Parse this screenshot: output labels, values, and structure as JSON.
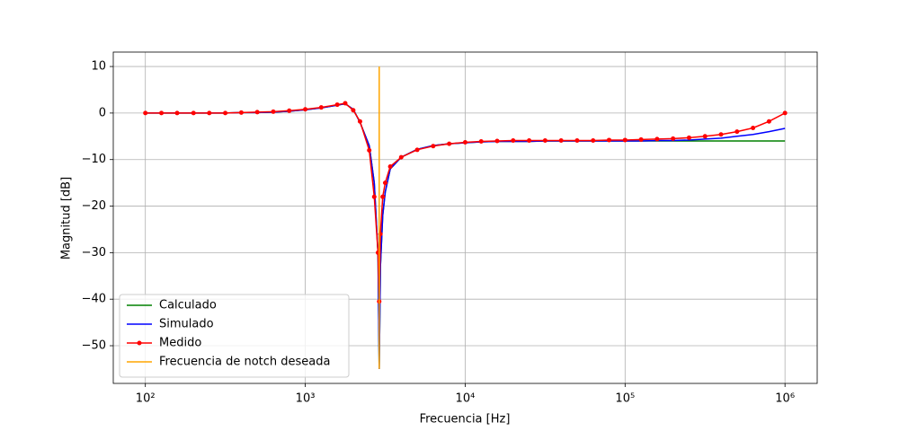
{
  "chart_data": {
    "type": "line",
    "xscale": "log",
    "grid": true,
    "legend": "lower left",
    "xlabel": "Frecuencia [Hz]",
    "ylabel": "Magnitud [dB]",
    "xlim": [
      63,
      1590000
    ],
    "ylim": [
      -58.1,
      13.1
    ],
    "xticks": [
      {
        "value": 100,
        "label": "10²"
      },
      {
        "value": 1000,
        "label": "10³"
      },
      {
        "value": 10000,
        "label": "10⁴"
      },
      {
        "value": 100000,
        "label": "10⁵"
      },
      {
        "value": 1000000,
        "label": "10⁶"
      }
    ],
    "yticks": [
      {
        "value": -50,
        "label": "−50"
      },
      {
        "value": -40,
        "label": "−40"
      },
      {
        "value": -30,
        "label": "−30"
      },
      {
        "value": -20,
        "label": "−20"
      },
      {
        "value": -10,
        "label": "−10"
      },
      0,
      10
    ],
    "x": [
      100,
      126,
      158,
      200,
      251,
      316,
      398,
      501,
      631,
      794,
      1000,
      1259,
      1585,
      1778,
      1995,
      2200,
      2512,
      2700,
      2850,
      2900,
      2950,
      3050,
      3162,
      3400,
      3981,
      5012,
      6310,
      7943,
      10000,
      12590,
      15850,
      19950,
      25120,
      31620,
      39810,
      50120,
      63100,
      79430,
      100000,
      125900,
      158500,
      199500,
      251200,
      316200,
      398100,
      501200,
      631000,
      794300,
      1000000
    ],
    "series": [
      {
        "name": "Calculado",
        "color": "#008000",
        "values": [
          0,
          0,
          0,
          0,
          0,
          0,
          0.1,
          0.1,
          0.2,
          0.4,
          0.7,
          1.1,
          1.7,
          2.0,
          0.8,
          -2,
          -7,
          -15,
          -30,
          -55,
          -33,
          -22,
          -17,
          -12,
          -9.5,
          -7.8,
          -7,
          -6.6,
          -6.4,
          -6.2,
          -6.1,
          -6.1,
          -6.1,
          -6,
          -6,
          -6,
          -6,
          -6,
          -6,
          -6,
          -6,
          -6,
          -6,
          -6,
          -6,
          -6,
          -6,
          -6,
          -6
        ]
      },
      {
        "name": "Simulado",
        "color": "#0000ff",
        "values": [
          0,
          0,
          0,
          0,
          0,
          0,
          0.1,
          0.1,
          0.2,
          0.4,
          0.7,
          1.1,
          1.7,
          2.0,
          0.8,
          -2,
          -7,
          -15,
          -30,
          -55,
          -33,
          -22,
          -17,
          -12,
          -9.5,
          -7.8,
          -7,
          -6.6,
          -6.4,
          -6.2,
          -6.1,
          -6.1,
          -6.1,
          -6,
          -6,
          -6,
          -6,
          -6,
          -6,
          -6,
          -5.9,
          -5.9,
          -5.8,
          -5.6,
          -5.4,
          -5,
          -4.6,
          -4,
          -3.3
        ]
      },
      {
        "name": "Medido",
        "color": "#ff0000",
        "marker": "o",
        "values": [
          0,
          0,
          0,
          0,
          0,
          0,
          0.1,
          0.2,
          0.3,
          0.5,
          0.8,
          1.2,
          1.8,
          2.1,
          0.6,
          -1.8,
          -8,
          -18,
          -30,
          -40.5,
          -26,
          -18,
          -15,
          -11.5,
          -9.5,
          -7.9,
          -7.1,
          -6.6,
          -6.3,
          -6.1,
          -6,
          -5.9,
          -5.9,
          -5.9,
          -5.9,
          -5.9,
          -5.9,
          -5.8,
          -5.8,
          -5.7,
          -5.6,
          -5.5,
          -5.3,
          -5,
          -4.6,
          -4,
          -3.2,
          -1.8,
          0
        ]
      },
      {
        "name": "Frecuencia de notch deseada",
        "color": "#ffa500",
        "x": [
          2900,
          2900
        ],
        "values": [
          10,
          -55
        ]
      }
    ]
  }
}
